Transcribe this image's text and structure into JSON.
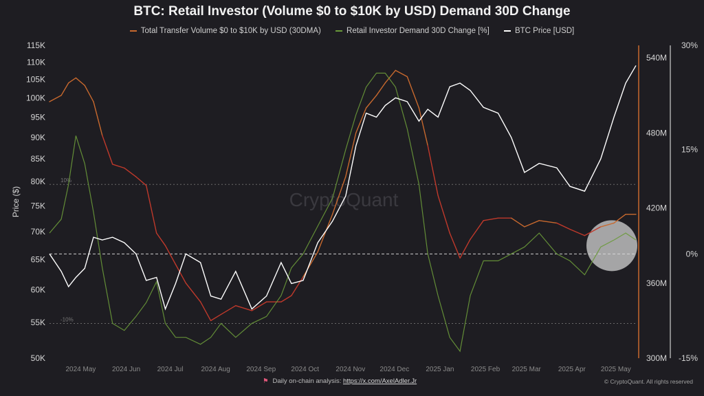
{
  "title": "BTC: Retail Investor (Volume $0 to $10K by USD) Demand 30D Change",
  "legend": [
    {
      "label": "Total Transfer Volume $0 to $10K by USD (30DMA)",
      "color": "#c8692e"
    },
    {
      "label": "Retail Investor Demand 30D Change [%]",
      "color": "#6a9a3a"
    },
    {
      "label": "BTC Price [USD]",
      "color": "#ffffff"
    }
  ],
  "watermark": "CryptoQuant",
  "footer": {
    "left_prefix": "Daily on-chain analysis:",
    "left_link": "https://x.com/AxelAdler.Jr",
    "right": "© CryptoQuant. All rights reserved"
  },
  "colors": {
    "background": "#1e1d22",
    "volume_line": "#c8692e",
    "demand_positive": "#6a9a3a",
    "demand_negative": "#c0392b",
    "price_line": "#ffffff",
    "highlight": "#d9d9d9"
  },
  "chart_data": {
    "type": "line",
    "x": [
      "2024 May",
      "2024 Jun",
      "2024 Jul",
      "2024 Aug",
      "2024 Sep",
      "2024 Oct",
      "2024 Nov",
      "2024 Dec",
      "2025 Jan",
      "2025 Feb",
      "2025 Mar",
      "2025 Apr",
      "2025 May"
    ],
    "x_start": "2024-04-20",
    "x_end": "2025-05-25",
    "axes": {
      "price": {
        "label": "Price ($)",
        "scale": "log",
        "range": [
          50000,
          115000
        ],
        "ticks": [
          "115K",
          "110K",
          "105K",
          "100K",
          "95K",
          "90K",
          "85K",
          "80K",
          "75K",
          "70K",
          "65K",
          "60K",
          "55K",
          "50K"
        ]
      },
      "volume": {
        "range": [
          300,
          550
        ],
        "unit": "M",
        "ticks": [
          "540M",
          "480M",
          "420M",
          "360M",
          "300M"
        ]
      },
      "demand": {
        "range": [
          -15,
          30
        ],
        "unit": "%",
        "ticks": [
          "30%",
          "15%",
          "0%",
          "-15%"
        ]
      }
    },
    "reference_lines": [
      {
        "axis": "demand",
        "value": 10,
        "label": "10%"
      },
      {
        "axis": "demand",
        "value": 0,
        "label": ""
      },
      {
        "axis": "demand",
        "value": -10,
        "label": "-10%"
      }
    ],
    "series": [
      {
        "name": "Total Transfer Volume $0 to $10K by USD (30DMA)",
        "axis": "volume",
        "colored_by_demand": true,
        "x": [
          "2024-04-20",
          "2024-04-28",
          "2024-05-03",
          "2024-05-08",
          "2024-05-14",
          "2024-05-20",
          "2024-05-26",
          "2024-06-02",
          "2024-06-10",
          "2024-06-18",
          "2024-06-25",
          "2024-07-02",
          "2024-07-08",
          "2024-07-15",
          "2024-07-22",
          "2024-08-01",
          "2024-08-08",
          "2024-08-15",
          "2024-08-25",
          "2024-09-05",
          "2024-09-15",
          "2024-09-25",
          "2024-10-02",
          "2024-10-10",
          "2024-10-20",
          "2024-10-30",
          "2024-11-08",
          "2024-11-15",
          "2024-11-22",
          "2024-11-29",
          "2024-12-05",
          "2024-12-12",
          "2024-12-20",
          "2024-12-28",
          "2025-01-03",
          "2025-01-10",
          "2025-01-18",
          "2025-01-25",
          "2025-02-01",
          "2025-02-10",
          "2025-02-20",
          "2025-03-01",
          "2025-03-10",
          "2025-03-20",
          "2025-04-01",
          "2025-04-10",
          "2025-04-20",
          "2025-05-01",
          "2025-05-10",
          "2025-05-18",
          "2025-05-25"
        ],
        "values": [
          505,
          510,
          520,
          524,
          518,
          505,
          478,
          455,
          452,
          445,
          438,
          400,
          390,
          375,
          360,
          345,
          330,
          335,
          342,
          338,
          345,
          345,
          350,
          365,
          385,
          415,
          445,
          480,
          500,
          510,
          520,
          530,
          525,
          500,
          470,
          430,
          400,
          380,
          395,
          410,
          412,
          412,
          405,
          410,
          408,
          403,
          398,
          405,
          408,
          415,
          415
        ]
      },
      {
        "name": "Retail Investor Demand 30D Change [%]",
        "axis": "demand",
        "x": [
          "2024-04-20",
          "2024-04-28",
          "2024-05-03",
          "2024-05-08",
          "2024-05-14",
          "2024-05-20",
          "2024-05-26",
          "2024-06-02",
          "2024-06-10",
          "2024-06-18",
          "2024-06-25",
          "2024-07-02",
          "2024-07-08",
          "2024-07-15",
          "2024-07-22",
          "2024-08-01",
          "2024-08-08",
          "2024-08-15",
          "2024-08-25",
          "2024-09-05",
          "2024-09-15",
          "2024-09-25",
          "2024-10-02",
          "2024-10-10",
          "2024-10-20",
          "2024-10-30",
          "2024-11-08",
          "2024-11-15",
          "2024-11-22",
          "2024-11-29",
          "2024-12-05",
          "2024-12-12",
          "2024-12-20",
          "2024-12-28",
          "2025-01-03",
          "2025-01-10",
          "2025-01-18",
          "2025-01-25",
          "2025-02-01",
          "2025-02-10",
          "2025-02-20",
          "2025-03-01",
          "2025-03-10",
          "2025-03-20",
          "2025-04-01",
          "2025-04-10",
          "2025-04-20",
          "2025-05-01",
          "2025-05-10",
          "2025-05-18",
          "2025-05-25"
        ],
        "values": [
          3,
          5,
          10,
          17,
          13,
          6,
          -2,
          -10,
          -11,
          -9,
          -7,
          -4,
          -10,
          -12,
          -12,
          -13,
          -12,
          -10,
          -12,
          -10,
          -9,
          -6,
          -2,
          0,
          4,
          8,
          15,
          20,
          24,
          26,
          26,
          24,
          18,
          10,
          0,
          -6,
          -12,
          -14,
          -6,
          -1,
          -1,
          0,
          1,
          3,
          0,
          -1,
          -3,
          1,
          2,
          3,
          2
        ]
      },
      {
        "name": "BTC Price [USD]",
        "axis": "price",
        "x": [
          "2024-04-20",
          "2024-04-28",
          "2024-05-03",
          "2024-05-08",
          "2024-05-14",
          "2024-05-20",
          "2024-05-26",
          "2024-06-02",
          "2024-06-10",
          "2024-06-18",
          "2024-06-25",
          "2024-07-02",
          "2024-07-08",
          "2024-07-15",
          "2024-07-22",
          "2024-08-01",
          "2024-08-08",
          "2024-08-15",
          "2024-08-25",
          "2024-09-05",
          "2024-09-15",
          "2024-09-25",
          "2024-10-02",
          "2024-10-10",
          "2024-10-20",
          "2024-10-30",
          "2024-11-08",
          "2024-11-15",
          "2024-11-22",
          "2024-11-29",
          "2024-12-05",
          "2024-12-12",
          "2024-12-20",
          "2024-12-28",
          "2025-01-03",
          "2025-01-10",
          "2025-01-18",
          "2025-01-25",
          "2025-02-01",
          "2025-02-10",
          "2025-02-20",
          "2025-03-01",
          "2025-03-10",
          "2025-03-20",
          "2025-04-01",
          "2025-04-10",
          "2025-04-20",
          "2025-05-01",
          "2025-05-10",
          "2025-05-18",
          "2025-05-25"
        ],
        "values": [
          66000,
          63000,
          60500,
          62000,
          63500,
          69000,
          68500,
          69000,
          68000,
          66000,
          61500,
          62000,
          57000,
          61000,
          66000,
          64500,
          59000,
          58500,
          63000,
          57000,
          59000,
          64500,
          61000,
          61500,
          68000,
          72000,
          77000,
          88000,
          96000,
          95000,
          98000,
          100000,
          99000,
          94000,
          97000,
          95000,
          103000,
          104000,
          102000,
          97500,
          96000,
          90000,
          82000,
          84000,
          83000,
          79000,
          78000,
          85000,
          95000,
          104000,
          109000
        ]
      }
    ],
    "grid": false,
    "legend_position": "top-center",
    "annotations": [
      {
        "type": "circle-highlight",
        "near": "2025 May",
        "axis": "demand",
        "value": 0
      }
    ]
  }
}
